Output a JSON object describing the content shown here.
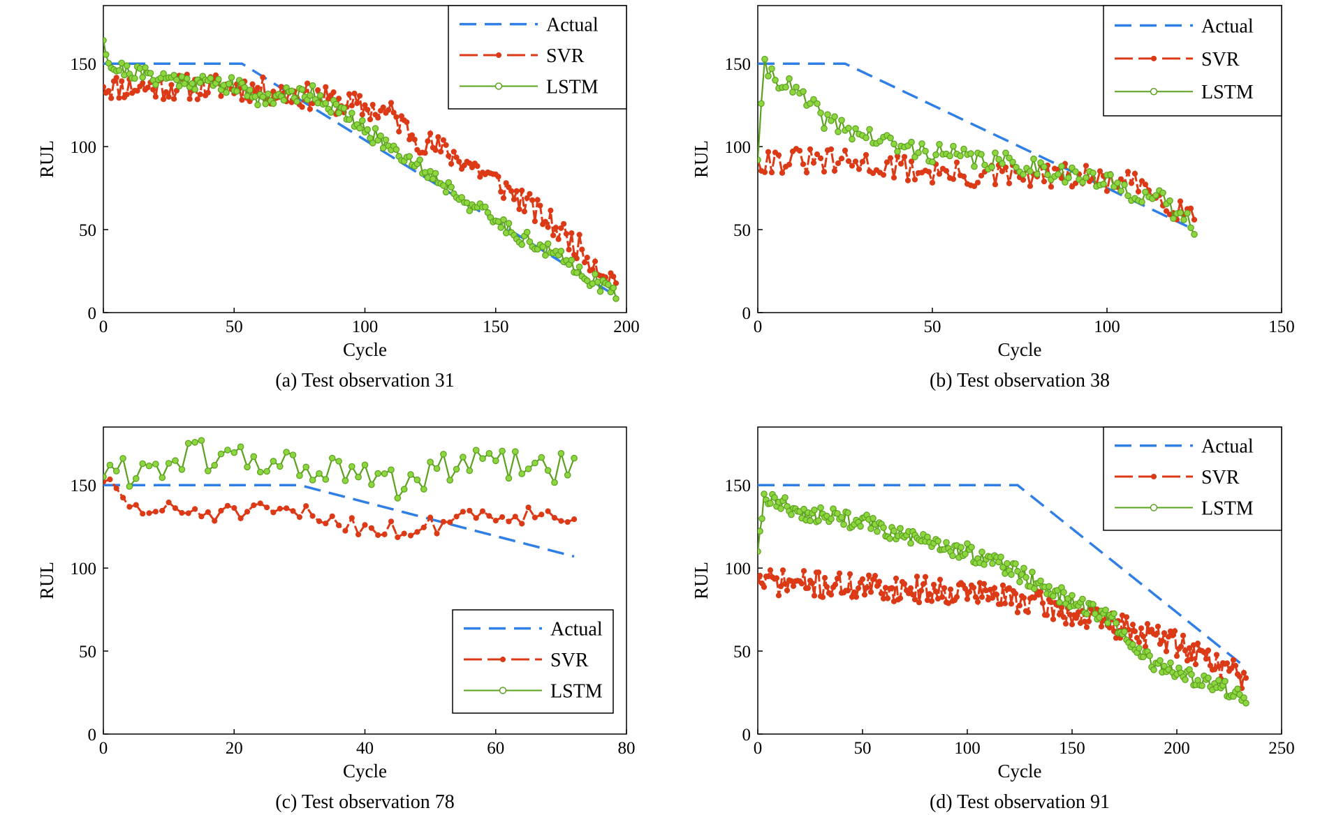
{
  "colors": {
    "actual": "#2f7fe6",
    "svr": "#dc3a17",
    "lstm": "#5aa11e",
    "lstm_fill": "#8dd63f"
  },
  "legend_labels": {
    "actual": "Actual",
    "svr": "SVR",
    "lstm": "LSTM"
  },
  "chart_data": [
    {
      "type": "line",
      "caption": "(a) Test observation 31",
      "xlabel": "Cycle",
      "ylabel": "RUL",
      "xlim": [
        0,
        200
      ],
      "ylim": [
        0,
        185
      ],
      "xticks": [
        0,
        50,
        100,
        150,
        200
      ],
      "yticks": [
        0,
        50,
        100,
        150
      ],
      "legend_position": "top-right",
      "series": [
        {
          "name": "Actual",
          "style": "dashed",
          "points": [
            [
              0,
              150
            ],
            [
              53,
              150
            ],
            [
              196,
              10
            ]
          ]
        },
        {
          "name": "SVR",
          "style": "dashed-markers",
          "generated": {
            "n": 196,
            "knots": [
              [
                0,
                136
              ],
              [
                50,
                136
              ],
              [
                80,
                130
              ],
              [
                110,
                120
              ],
              [
                120,
                105
              ],
              [
                140,
                90
              ],
              [
                160,
                68
              ],
              [
                180,
                42
              ],
              [
                196,
                18
              ]
            ],
            "noise": 8,
            "seed": 11
          }
        },
        {
          "name": "LSTM",
          "style": "solid-markers",
          "generated": {
            "n": 196,
            "knots": [
              [
                0,
                164
              ],
              [
                3,
                148
              ],
              [
                20,
                142
              ],
              [
                50,
                137
              ],
              [
                60,
                129
              ],
              [
                80,
                133
              ],
              [
                100,
                110
              ],
              [
                115,
                95
              ],
              [
                130,
                78
              ],
              [
                145,
                60
              ],
              [
                160,
                46
              ],
              [
                180,
                28
              ],
              [
                196,
                10
              ]
            ],
            "noise": 5,
            "seed": 21
          }
        }
      ]
    },
    {
      "type": "line",
      "caption": "(b) Test observation 38",
      "xlabel": "Cycle",
      "ylabel": "RUL",
      "xlim": [
        0,
        150
      ],
      "ylim": [
        0,
        185
      ],
      "xticks": [
        0,
        50,
        100,
        150
      ],
      "yticks": [
        0,
        50,
        100,
        150
      ],
      "legend_position": "top-right",
      "series": [
        {
          "name": "Actual",
          "style": "dashed",
          "points": [
            [
              0,
              150
            ],
            [
              25,
              150
            ],
            [
              123,
              52
            ]
          ]
        },
        {
          "name": "SVR",
          "style": "dashed-markers",
          "generated": {
            "n": 125,
            "knots": [
              [
                0,
                92
              ],
              [
                30,
                90
              ],
              [
                60,
                82
              ],
              [
                90,
                82
              ],
              [
                110,
                76
              ],
              [
                125,
                58
              ]
            ],
            "noise": 8,
            "seed": 31
          }
        },
        {
          "name": "LSTM",
          "style": "solid-markers",
          "generated": {
            "n": 125,
            "knots": [
              [
                0,
                92
              ],
              [
                2,
                148
              ],
              [
                10,
                134
              ],
              [
                20,
                115
              ],
              [
                40,
                100
              ],
              [
                60,
                93
              ],
              [
                80,
                88
              ],
              [
                100,
                78
              ],
              [
                115,
                68
              ],
              [
                125,
                52
              ]
            ],
            "noise": 6,
            "seed": 41
          }
        }
      ]
    },
    {
      "type": "line",
      "caption": "(c) Test observation 78",
      "xlabel": "Cycle",
      "ylabel": "RUL",
      "xlim": [
        0,
        80
      ],
      "ylim": [
        0,
        185
      ],
      "xticks": [
        0,
        20,
        40,
        60,
        80
      ],
      "yticks": [
        0,
        50,
        100,
        150
      ],
      "legend_position": "bottom-right",
      "series": [
        {
          "name": "Actual",
          "style": "dashed",
          "points": [
            [
              0,
              150
            ],
            [
              30,
              150
            ],
            [
              72,
              107
            ]
          ]
        },
        {
          "name": "SVR",
          "style": "dashed-markers",
          "generated": {
            "n": 72,
            "knots": [
              [
                0,
                152
              ],
              [
                5,
                135
              ],
              [
                20,
                133
              ],
              [
                30,
                133
              ],
              [
                40,
                125
              ],
              [
                48,
                122
              ],
              [
                55,
                133
              ],
              [
                72,
                132
              ]
            ],
            "noise": 6,
            "seed": 51
          }
        },
        {
          "name": "LSTM",
          "style": "solid-markers",
          "generated": {
            "n": 72,
            "knots": [
              [
                0,
                155
              ],
              [
                15,
                168
              ],
              [
                30,
                162
              ],
              [
                45,
                150
              ],
              [
                55,
                163
              ],
              [
                72,
                160
              ]
            ],
            "noise": 10,
            "seed": 61
          }
        }
      ]
    },
    {
      "type": "line",
      "caption": "(d) Test observation 91",
      "xlabel": "Cycle",
      "ylabel": "RUL",
      "xlim": [
        0,
        250
      ],
      "ylim": [
        0,
        185
      ],
      "xticks": [
        0,
        50,
        100,
        150,
        200,
        250
      ],
      "yticks": [
        0,
        50,
        100,
        150
      ],
      "legend_position": "top-right",
      "series": [
        {
          "name": "Actual",
          "style": "dashed",
          "points": [
            [
              0,
              150
            ],
            [
              124,
              150
            ],
            [
              233,
              40
            ]
          ]
        },
        {
          "name": "SVR",
          "style": "dashed-markers",
          "generated": {
            "n": 233,
            "knots": [
              [
                0,
                92
              ],
              [
                60,
                88
              ],
              [
                100,
                86
              ],
              [
                130,
                80
              ],
              [
                150,
                72
              ],
              [
                180,
                62
              ],
              [
                200,
                55
              ],
              [
                220,
                42
              ],
              [
                233,
                34
              ]
            ],
            "noise": 8,
            "seed": 71
          }
        },
        {
          "name": "LSTM",
          "style": "solid-markers",
          "generated": {
            "n": 233,
            "knots": [
              [
                0,
                110
              ],
              [
                3,
                143
              ],
              [
                20,
                134
              ],
              [
                50,
                128
              ],
              [
                80,
                115
              ],
              [
                100,
                110
              ],
              [
                120,
                100
              ],
              [
                150,
                80
              ],
              [
                170,
                68
              ],
              [
                180,
                50
              ],
              [
                200,
                36
              ],
              [
                220,
                30
              ],
              [
                233,
                22
              ]
            ],
            "noise": 5,
            "seed": 81
          }
        }
      ]
    }
  ]
}
